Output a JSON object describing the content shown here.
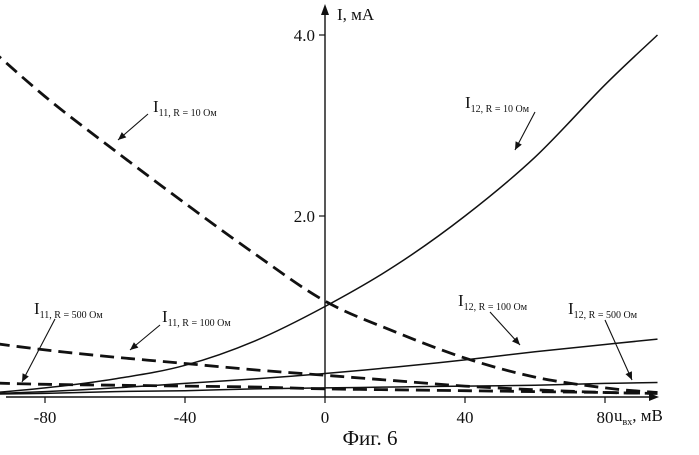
{
  "chart_data": {
    "type": "line",
    "caption": "Фиг. 6",
    "xlabel_main": "u",
    "xlabel_sub": "вх",
    "xlabel_unit": ", мВ",
    "ylabel": "I, мА",
    "xlim": [
      -100,
      100
    ],
    "ylim": [
      0,
      4.2
    ],
    "xticks": [
      -80,
      -40,
      0,
      40,
      80
    ],
    "xtick_labels": [
      "-80",
      "-40",
      "0",
      "40",
      "80"
    ],
    "yticks": [
      2.0,
      4.0
    ],
    "ytick_labels": [
      "2.0",
      "4.0"
    ],
    "grid": false,
    "x": [
      -100,
      -80,
      -60,
      -40,
      -20,
      0,
      20,
      40,
      60,
      80,
      95
    ],
    "series": [
      {
        "label_main": "I",
        "label_sub": "11, R = 10 Ом",
        "style": "dashed",
        "values": [
          4.0,
          3.32,
          2.72,
          2.14,
          1.58,
          1.06,
          0.72,
          0.43,
          0.22,
          0.1,
          0.05
        ]
      },
      {
        "label_main": "I",
        "label_sub": "11, R = 100 Ом",
        "style": "dashed",
        "values": [
          0.62,
          0.52,
          0.44,
          0.37,
          0.3,
          0.24,
          0.18,
          0.12,
          0.08,
          0.05,
          0.04
        ]
      },
      {
        "label_main": "I",
        "label_sub": "11, R = 500 Ом",
        "style": "dashed",
        "values": [
          0.16,
          0.14,
          0.13,
          0.12,
          0.11,
          0.09,
          0.08,
          0.07,
          0.06,
          0.05,
          0.04
        ]
      },
      {
        "label_main": "I",
        "label_sub": "12, R = 10 Ом",
        "style": "solid",
        "values": [
          0.03,
          0.1,
          0.2,
          0.35,
          0.62,
          1.0,
          1.45,
          2.0,
          2.65,
          3.45,
          4.0
        ]
      },
      {
        "label_main": "I",
        "label_sub": "12, R = 100 Ом",
        "style": "solid",
        "values": [
          0.03,
          0.06,
          0.1,
          0.15,
          0.2,
          0.26,
          0.33,
          0.41,
          0.5,
          0.58,
          0.64
        ]
      },
      {
        "label_main": "I",
        "label_sub": "12, R = 500 Ом",
        "style": "solid",
        "values": [
          0.03,
          0.04,
          0.06,
          0.07,
          0.09,
          0.1,
          0.11,
          0.12,
          0.13,
          0.15,
          0.16
        ]
      }
    ]
  }
}
